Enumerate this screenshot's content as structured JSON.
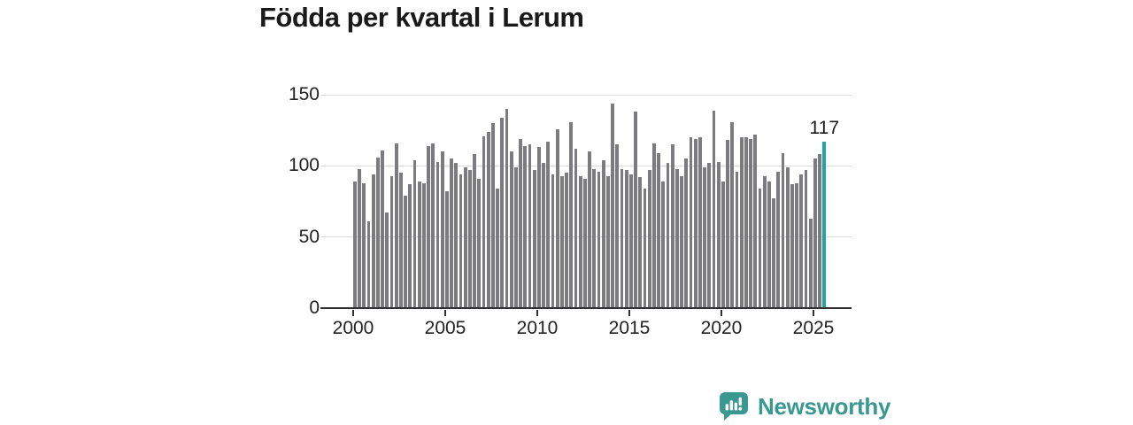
{
  "title": "Födda per kvartal i Lerum",
  "chart_data": {
    "type": "bar",
    "title": "Födda per kvartal i Lerum",
    "x_start": "2000 Q1",
    "x_end": "2025 Q3",
    "quarters_per_year": 4,
    "values": [
      89,
      98,
      88,
      61,
      94,
      106,
      111,
      67,
      93,
      116,
      95,
      79,
      87,
      104,
      89,
      88,
      114,
      116,
      103,
      110,
      82,
      105,
      102,
      94,
      99,
      97,
      108,
      91,
      121,
      124,
      130,
      84,
      134,
      140,
      110,
      99,
      119,
      114,
      115,
      97,
      113,
      102,
      117,
      94,
      126,
      93,
      95,
      131,
      112,
      93,
      91,
      110,
      98,
      96,
      104,
      93,
      144,
      115,
      98,
      97,
      94,
      138,
      92,
      84,
      97,
      116,
      109,
      89,
      102,
      115,
      98,
      93,
      105,
      120,
      119,
      120,
      99,
      102,
      139,
      103,
      89,
      118,
      131,
      96,
      120,
      120,
      119,
      122,
      84,
      93,
      89,
      77,
      96,
      109,
      99,
      87,
      88,
      94,
      97,
      63,
      105,
      108,
      117
    ],
    "highlight_index": 102,
    "highlight_label": "117",
    "yticks": [
      0,
      50,
      100,
      150
    ],
    "ylim": [
      0,
      150
    ],
    "xticks": [
      2000,
      2005,
      2010,
      2015,
      2020,
      2025
    ],
    "grid": "horizontal",
    "legend": "none",
    "bar_color": "#7b7b80",
    "highlight_color": "#1fa5a0",
    "axis_color": "#2f2f2f",
    "grid_color": "#dcdcdc",
    "label_color": "#222222"
  },
  "logo": {
    "text": "Newsworthy",
    "color": "#399890",
    "icon": "speech-bubble-bar-chart"
  }
}
